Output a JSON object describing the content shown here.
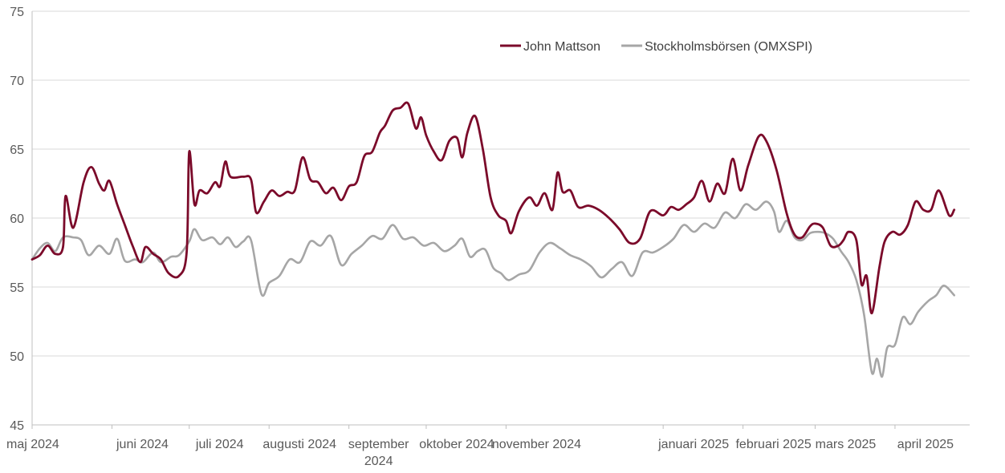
{
  "chart_data": {
    "type": "line",
    "ylim": [
      45,
      75
    ],
    "yticks": [
      45,
      50,
      55,
      60,
      65,
      70,
      75
    ],
    "x_domain": [
      "2024-05-01",
      "2025-04-30"
    ],
    "xticks": [
      {
        "date": "2024-05-01",
        "label": "maj 2024"
      },
      {
        "date": "2024-06-01",
        "label": "juni 2024"
      },
      {
        "date": "2024-07-01",
        "label": "juli 2024"
      },
      {
        "date": "2024-08-01",
        "label": "augusti 2024"
      },
      {
        "date": "2024-09-01",
        "label": "september 2024"
      },
      {
        "date": "2024-10-01",
        "label": "oktober 2024"
      },
      {
        "date": "2024-11-01",
        "label": "november 2024"
      },
      {
        "date": "2025-01-01",
        "label": "januari 2025"
      },
      {
        "date": "2025-02-01",
        "label": "februari 2025"
      },
      {
        "date": "2025-03-01",
        "label": "mars 2025"
      },
      {
        "date": "2025-04-01",
        "label": "april 2025"
      }
    ],
    "legend_position": "top-right",
    "grid": true,
    "series": [
      {
        "name": "John Mattson",
        "color": "#7b0a2a",
        "points": [
          [
            "2024-05-01",
            57.0
          ],
          [
            "2024-05-04",
            57.3
          ],
          [
            "2024-05-07",
            58.0
          ],
          [
            "2024-05-10",
            57.4
          ],
          [
            "2024-05-13",
            57.9
          ],
          [
            "2024-05-14",
            61.6
          ],
          [
            "2024-05-17",
            59.3
          ],
          [
            "2024-05-21",
            62.6
          ],
          [
            "2024-05-24",
            63.7
          ],
          [
            "2024-05-27",
            62.5
          ],
          [
            "2024-05-29",
            62.0
          ],
          [
            "2024-05-31",
            62.7
          ],
          [
            "2024-06-03",
            61.0
          ],
          [
            "2024-06-06",
            59.5
          ],
          [
            "2024-06-09",
            58.0
          ],
          [
            "2024-06-12",
            56.8
          ],
          [
            "2024-06-14",
            57.9
          ],
          [
            "2024-06-17",
            57.4
          ],
          [
            "2024-06-20",
            57.0
          ],
          [
            "2024-06-23",
            56.0
          ],
          [
            "2024-06-27",
            55.8
          ],
          [
            "2024-06-30",
            57.5
          ],
          [
            "2024-07-01",
            64.8
          ],
          [
            "2024-07-03",
            61.0
          ],
          [
            "2024-07-05",
            62.0
          ],
          [
            "2024-07-08",
            61.8
          ],
          [
            "2024-07-11",
            62.6
          ],
          [
            "2024-07-13",
            62.3
          ],
          [
            "2024-07-15",
            64.1
          ],
          [
            "2024-07-17",
            63.0
          ],
          [
            "2024-07-22",
            63.0
          ],
          [
            "2024-07-25",
            62.8
          ],
          [
            "2024-07-27",
            60.4
          ],
          [
            "2024-07-30",
            61.2
          ],
          [
            "2024-08-02",
            62.0
          ],
          [
            "2024-08-05",
            61.6
          ],
          [
            "2024-08-08",
            61.9
          ],
          [
            "2024-08-11",
            62.0
          ],
          [
            "2024-08-14",
            64.4
          ],
          [
            "2024-08-17",
            62.8
          ],
          [
            "2024-08-20",
            62.6
          ],
          [
            "2024-08-23",
            61.8
          ],
          [
            "2024-08-26",
            62.2
          ],
          [
            "2024-08-29",
            61.3
          ],
          [
            "2024-09-01",
            62.3
          ],
          [
            "2024-09-04",
            62.6
          ],
          [
            "2024-09-07",
            64.5
          ],
          [
            "2024-09-10",
            64.8
          ],
          [
            "2024-09-13",
            66.2
          ],
          [
            "2024-09-15",
            66.7
          ],
          [
            "2024-09-18",
            67.8
          ],
          [
            "2024-09-21",
            68.0
          ],
          [
            "2024-09-24",
            68.3
          ],
          [
            "2024-09-27",
            66.5
          ],
          [
            "2024-09-29",
            67.3
          ],
          [
            "2024-10-01",
            66.0
          ],
          [
            "2024-10-04",
            64.8
          ],
          [
            "2024-10-07",
            64.2
          ],
          [
            "2024-10-10",
            65.6
          ],
          [
            "2024-10-13",
            65.8
          ],
          [
            "2024-10-15",
            64.4
          ],
          [
            "2024-10-17",
            66.2
          ],
          [
            "2024-10-20",
            67.4
          ],
          [
            "2024-10-23",
            65.0
          ],
          [
            "2024-10-26",
            61.5
          ],
          [
            "2024-10-29",
            60.2
          ],
          [
            "2024-11-01",
            59.8
          ],
          [
            "2024-11-03",
            58.9
          ],
          [
            "2024-11-06",
            60.5
          ],
          [
            "2024-11-10",
            61.5
          ],
          [
            "2024-11-13",
            60.9
          ],
          [
            "2024-11-16",
            61.8
          ],
          [
            "2024-11-19",
            60.6
          ],
          [
            "2024-11-21",
            63.3
          ],
          [
            "2024-11-23",
            61.9
          ],
          [
            "2024-11-26",
            62.0
          ],
          [
            "2024-11-29",
            60.8
          ],
          [
            "2024-12-03",
            60.9
          ],
          [
            "2024-12-07",
            60.6
          ],
          [
            "2024-12-11",
            60.0
          ],
          [
            "2024-12-15",
            59.2
          ],
          [
            "2024-12-19",
            58.2
          ],
          [
            "2024-12-23",
            58.5
          ],
          [
            "2024-12-27",
            60.5
          ],
          [
            "2025-01-01",
            60.2
          ],
          [
            "2025-01-04",
            60.8
          ],
          [
            "2025-01-07",
            60.6
          ],
          [
            "2025-01-10",
            61.0
          ],
          [
            "2025-01-13",
            61.5
          ],
          [
            "2025-01-16",
            62.7
          ],
          [
            "2025-01-19",
            61.2
          ],
          [
            "2025-01-22",
            62.5
          ],
          [
            "2025-01-25",
            61.8
          ],
          [
            "2025-01-28",
            64.3
          ],
          [
            "2025-01-31",
            62.0
          ],
          [
            "2025-02-03",
            63.8
          ],
          [
            "2025-02-07",
            65.9
          ],
          [
            "2025-02-10",
            65.6
          ],
          [
            "2025-02-14",
            63.5
          ],
          [
            "2025-02-18",
            60.3
          ],
          [
            "2025-02-21",
            58.8
          ],
          [
            "2025-02-24",
            58.6
          ],
          [
            "2025-02-27",
            59.4
          ],
          [
            "2025-03-01",
            59.6
          ],
          [
            "2025-03-04",
            59.3
          ],
          [
            "2025-03-07",
            58.0
          ],
          [
            "2025-03-10",
            58.0
          ],
          [
            "2025-03-12",
            58.4
          ],
          [
            "2025-03-14",
            59.0
          ],
          [
            "2025-03-17",
            58.4
          ],
          [
            "2025-03-19",
            55.2
          ],
          [
            "2025-03-21",
            55.8
          ],
          [
            "2025-03-23",
            53.1
          ],
          [
            "2025-03-26",
            56.5
          ],
          [
            "2025-03-28",
            58.3
          ],
          [
            "2025-03-31",
            59.0
          ],
          [
            "2025-04-03",
            58.8
          ],
          [
            "2025-04-06",
            59.5
          ],
          [
            "2025-04-09",
            61.2
          ],
          [
            "2025-04-12",
            60.6
          ],
          [
            "2025-04-15",
            60.6
          ],
          [
            "2025-04-18",
            62.0
          ],
          [
            "2025-04-22",
            60.2
          ],
          [
            "2025-04-24",
            60.6
          ]
        ]
      },
      {
        "name": "Stockholmsbörsen (OMXSPI)",
        "color": "#a6a6a6",
        "points": [
          [
            "2024-05-01",
            57.0
          ],
          [
            "2024-05-04",
            57.8
          ],
          [
            "2024-05-07",
            58.2
          ],
          [
            "2024-05-10",
            57.6
          ],
          [
            "2024-05-13",
            58.6
          ],
          [
            "2024-05-17",
            58.6
          ],
          [
            "2024-05-20",
            58.4
          ],
          [
            "2024-05-23",
            57.3
          ],
          [
            "2024-05-27",
            58.0
          ],
          [
            "2024-05-31",
            57.4
          ],
          [
            "2024-06-03",
            58.5
          ],
          [
            "2024-06-06",
            56.9
          ],
          [
            "2024-06-10",
            57.0
          ],
          [
            "2024-06-13",
            56.8
          ],
          [
            "2024-06-17",
            57.5
          ],
          [
            "2024-06-20",
            56.8
          ],
          [
            "2024-06-24",
            57.2
          ],
          [
            "2024-06-27",
            57.3
          ],
          [
            "2024-07-01",
            58.3
          ],
          [
            "2024-07-03",
            59.2
          ],
          [
            "2024-07-06",
            58.4
          ],
          [
            "2024-07-10",
            58.6
          ],
          [
            "2024-07-13",
            58.1
          ],
          [
            "2024-07-16",
            58.6
          ],
          [
            "2024-07-19",
            57.9
          ],
          [
            "2024-07-22",
            58.3
          ],
          [
            "2024-07-25",
            58.4
          ],
          [
            "2024-07-29",
            54.5
          ],
          [
            "2024-08-01",
            55.3
          ],
          [
            "2024-08-05",
            55.8
          ],
          [
            "2024-08-09",
            57.0
          ],
          [
            "2024-08-13",
            56.8
          ],
          [
            "2024-08-17",
            58.3
          ],
          [
            "2024-08-21",
            58.0
          ],
          [
            "2024-08-25",
            58.7
          ],
          [
            "2024-08-29",
            56.6
          ],
          [
            "2024-09-02",
            57.4
          ],
          [
            "2024-09-06",
            58.0
          ],
          [
            "2024-09-10",
            58.7
          ],
          [
            "2024-09-14",
            58.5
          ],
          [
            "2024-09-18",
            59.5
          ],
          [
            "2024-09-22",
            58.5
          ],
          [
            "2024-09-26",
            58.6
          ],
          [
            "2024-09-30",
            58.0
          ],
          [
            "2024-10-04",
            58.2
          ],
          [
            "2024-10-08",
            57.6
          ],
          [
            "2024-10-12",
            58.0
          ],
          [
            "2024-10-15",
            58.5
          ],
          [
            "2024-10-18",
            57.2
          ],
          [
            "2024-10-21",
            57.6
          ],
          [
            "2024-10-24",
            57.7
          ],
          [
            "2024-10-27",
            56.4
          ],
          [
            "2024-10-30",
            56.0
          ],
          [
            "2024-11-02",
            55.5
          ],
          [
            "2024-11-06",
            55.9
          ],
          [
            "2024-11-10",
            56.2
          ],
          [
            "2024-11-14",
            57.5
          ],
          [
            "2024-11-18",
            58.2
          ],
          [
            "2024-11-22",
            57.8
          ],
          [
            "2024-11-26",
            57.3
          ],
          [
            "2024-11-30",
            57.0
          ],
          [
            "2024-12-04",
            56.5
          ],
          [
            "2024-12-08",
            55.7
          ],
          [
            "2024-12-12",
            56.3
          ],
          [
            "2024-12-16",
            56.8
          ],
          [
            "2024-12-20",
            55.8
          ],
          [
            "2024-12-24",
            57.5
          ],
          [
            "2024-12-28",
            57.5
          ],
          [
            "2025-01-01",
            57.9
          ],
          [
            "2025-01-05",
            58.5
          ],
          [
            "2025-01-09",
            59.5
          ],
          [
            "2025-01-13",
            59.0
          ],
          [
            "2025-01-17",
            59.6
          ],
          [
            "2025-01-21",
            59.3
          ],
          [
            "2025-01-25",
            60.4
          ],
          [
            "2025-01-29",
            60.0
          ],
          [
            "2025-02-02",
            61.0
          ],
          [
            "2025-02-06",
            60.6
          ],
          [
            "2025-02-10",
            61.2
          ],
          [
            "2025-02-13",
            60.5
          ],
          [
            "2025-02-15",
            59.0
          ],
          [
            "2025-02-18",
            59.8
          ],
          [
            "2025-02-21",
            58.6
          ],
          [
            "2025-02-24",
            58.4
          ],
          [
            "2025-02-27",
            58.9
          ],
          [
            "2025-03-02",
            59.0
          ],
          [
            "2025-03-05",
            58.9
          ],
          [
            "2025-03-08",
            58.5
          ],
          [
            "2025-03-11",
            57.6
          ],
          [
            "2025-03-14",
            56.8
          ],
          [
            "2025-03-17",
            55.5
          ],
          [
            "2025-03-20",
            53.0
          ],
          [
            "2025-03-23",
            48.8
          ],
          [
            "2025-03-25",
            49.8
          ],
          [
            "2025-03-27",
            48.5
          ],
          [
            "2025-03-29",
            50.6
          ],
          [
            "2025-04-01",
            50.8
          ],
          [
            "2025-04-04",
            52.8
          ],
          [
            "2025-04-07",
            52.3
          ],
          [
            "2025-04-10",
            53.2
          ],
          [
            "2025-04-14",
            54.0
          ],
          [
            "2025-04-17",
            54.4
          ],
          [
            "2025-04-20",
            55.1
          ],
          [
            "2025-04-24",
            54.4
          ]
        ]
      }
    ]
  }
}
